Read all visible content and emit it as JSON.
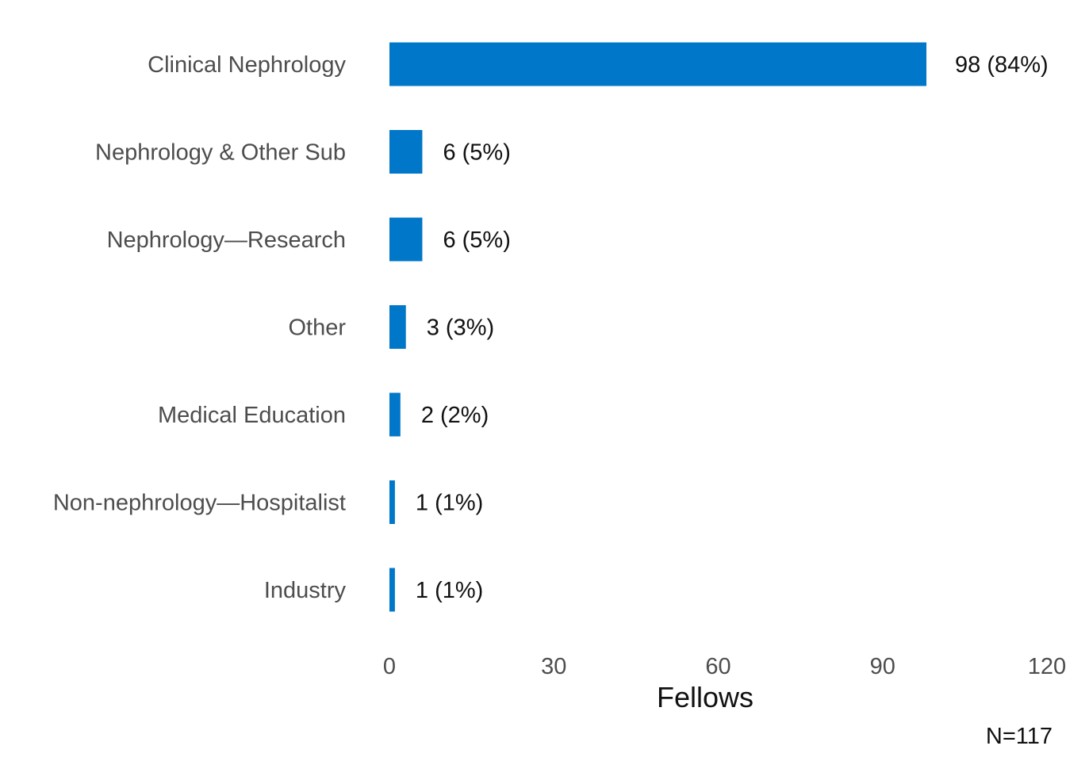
{
  "chart_data": {
    "type": "bar",
    "orientation": "horizontal",
    "title": "",
    "categories": [
      "Clinical Nephrology",
      "Nephrology & Other Sub",
      "Nephrology—Research",
      "Other",
      "Medical Education",
      "Non-nephrology—Hospitalist",
      "Industry"
    ],
    "values": [
      98,
      6,
      6,
      3,
      2,
      1,
      1
    ],
    "data_labels": [
      "98 (84%)",
      "6 (5%)",
      "6 (5%)",
      "3 (3%)",
      "2 (2%)",
      "1 (1%)",
      "1 (1%)"
    ],
    "xlabel": "Fellows",
    "ylabel": "",
    "xlim": [
      0,
      120
    ],
    "xticks": [
      "0",
      "30",
      "60",
      "90",
      "120"
    ],
    "grid": false,
    "note": "N=117",
    "bar_color": "#0077C8"
  }
}
